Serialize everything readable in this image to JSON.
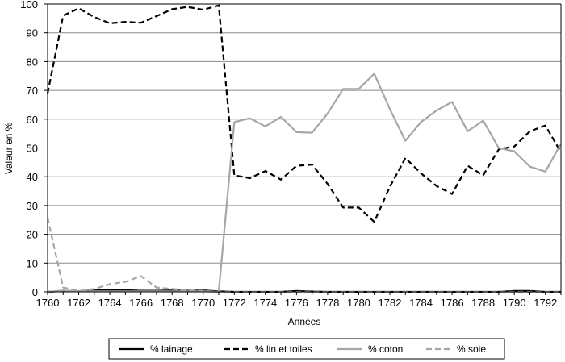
{
  "chart_data": {
    "type": "line",
    "title": "",
    "xlabel": "Années",
    "ylabel": "Valeur en %",
    "xlim": [
      1760,
      1793
    ],
    "ylim": [
      0,
      100
    ],
    "x_ticks": [
      1760,
      1762,
      1764,
      1766,
      1768,
      1770,
      1772,
      1774,
      1776,
      1778,
      1780,
      1782,
      1784,
      1786,
      1788,
      1790,
      1792
    ],
    "y_ticks": [
      0,
      10,
      20,
      30,
      40,
      50,
      60,
      70,
      80,
      90,
      100
    ],
    "grid": "horizontal",
    "legend_position": "bottom",
    "x": [
      1760,
      1761,
      1762,
      1763,
      1764,
      1765,
      1766,
      1767,
      1768,
      1769,
      1770,
      1771,
      1772,
      1773,
      1774,
      1775,
      1776,
      1777,
      1778,
      1779,
      1780,
      1781,
      1782,
      1783,
      1784,
      1785,
      1786,
      1787,
      1788,
      1789,
      1790,
      1791,
      1792,
      1793
    ],
    "series": [
      {
        "name": "% lainage",
        "color": "#000000",
        "dash": "solid",
        "values": [
          0,
          0.3,
          0.2,
          0.5,
          0.6,
          0.6,
          0.4,
          0.4,
          0.5,
          0.4,
          0.5,
          0.2,
          0,
          0,
          0,
          0,
          0.3,
          0.1,
          0,
          0,
          0,
          0,
          0,
          0,
          0,
          0,
          0,
          0,
          0,
          0,
          0.3,
          0.3,
          0,
          0
        ]
      },
      {
        "name": "% lin et toiles",
        "color": "#000000",
        "dash": "dashed",
        "values": [
          69,
          96,
          98.5,
          95.5,
          93.3,
          93.8,
          93.5,
          95.8,
          98.2,
          99,
          98,
          99.5,
          40.5,
          39.5,
          42,
          39,
          43.8,
          44.2,
          37.5,
          29.3,
          29.3,
          24.3,
          36.5,
          46.5,
          41.2,
          36.8,
          34,
          43.8,
          40.5,
          49.5,
          50.5,
          55.8,
          57.8,
          48.5
        ]
      },
      {
        "name": "% coton",
        "color": "#a6a6a6",
        "dash": "solid",
        "values": [
          0,
          0.5,
          0.2,
          0.2,
          0.2,
          0.2,
          0.2,
          0.2,
          0.2,
          0.2,
          0.2,
          0,
          59,
          60.3,
          57.5,
          60.8,
          55.5,
          55.3,
          62,
          70.5,
          70.5,
          75.8,
          63.5,
          52.5,
          59,
          63,
          66,
          55.8,
          59.5,
          50,
          48.8,
          43.5,
          41.8,
          51.5
        ]
      },
      {
        "name": "% soie",
        "color": "#a6a6a6",
        "dash": "dashed",
        "values": [
          25.8,
          1.5,
          0.3,
          1,
          2.7,
          3.5,
          5.5,
          1.5,
          1,
          0.5,
          0.3,
          0,
          0,
          0,
          0,
          0,
          0,
          0,
          0,
          0,
          0,
          0,
          0,
          0,
          0,
          0,
          0,
          0,
          0,
          0,
          0,
          0,
          0,
          0
        ]
      }
    ]
  }
}
